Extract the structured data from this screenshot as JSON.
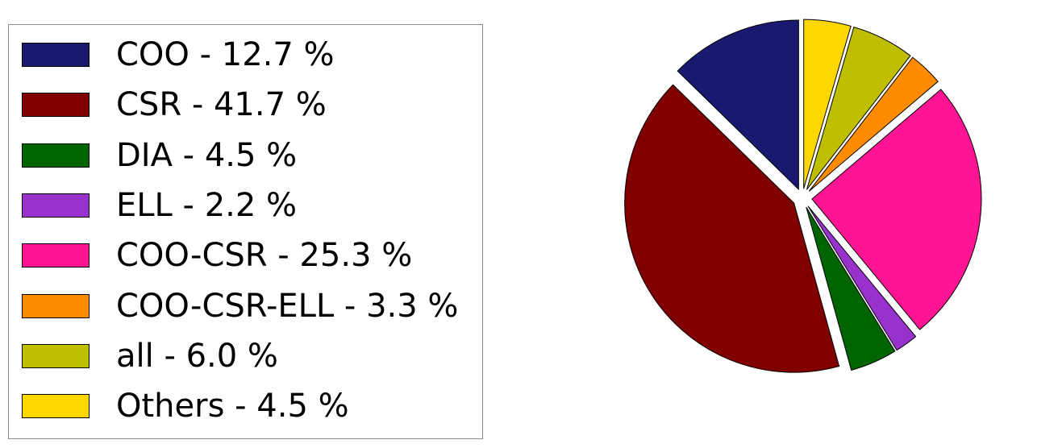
{
  "chart_data": {
    "type": "pie",
    "title": "",
    "legend_position": "left",
    "exploded": true,
    "start_angle_deg": 90,
    "direction": "counterclockwise",
    "slices": [
      {
        "label": "COO",
        "value": 12.7,
        "legend": "COO - 12.7 %",
        "color": "#191970"
      },
      {
        "label": "CSR",
        "value": 41.7,
        "legend": "CSR - 41.7 %",
        "color": "#800000"
      },
      {
        "label": "DIA",
        "value": 4.5,
        "legend": "DIA - 4.5 %",
        "color": "#006400"
      },
      {
        "label": "ELL",
        "value": 2.2,
        "legend": "ELL - 2.2 %",
        "color": "#9932CC"
      },
      {
        "label": "COO-CSR",
        "value": 25.3,
        "legend": "COO-CSR - 25.3 %",
        "color": "#FF1493"
      },
      {
        "label": "COO-CSR-ELL",
        "value": 3.3,
        "legend": "COO-CSR-ELL - 3.3 %",
        "color": "#FF8C00"
      },
      {
        "label": "all",
        "value": 6.0,
        "legend": "all - 6.0 %",
        "color": "#BFBF00"
      },
      {
        "label": "Others",
        "value": 4.5,
        "legend": "Others - 4.5 %",
        "color": "#FFD700"
      }
    ]
  }
}
